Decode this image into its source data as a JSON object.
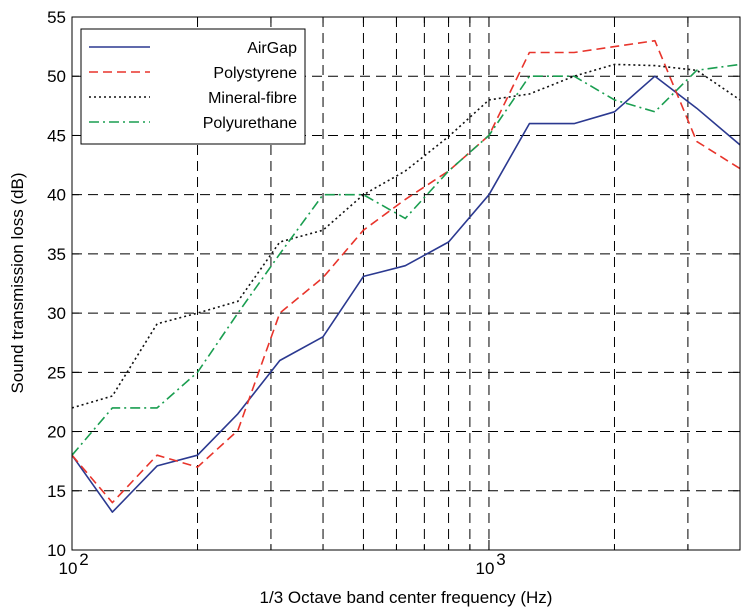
{
  "chart_data": {
    "type": "line",
    "title": "",
    "xlabel": "1/3 Octave band center frequency (Hz)",
    "ylabel": "Sound transmission loss (dB)",
    "xscale": "log",
    "xlim": [
      100,
      4000
    ],
    "ylim": [
      10,
      55
    ],
    "yticks": [
      10,
      15,
      20,
      25,
      30,
      35,
      40,
      45,
      50,
      55
    ],
    "xticks_major": [
      {
        "value": 100,
        "base": "10",
        "exp": "2"
      },
      {
        "value": 1000,
        "base": "10",
        "exp": "3"
      }
    ],
    "grid": true,
    "grid_style": "dashed",
    "legend_position": "top-left",
    "x": [
      100,
      125,
      160,
      200,
      250,
      315,
      400,
      500,
      630,
      800,
      1000,
      1250,
      1600,
      2000,
      2500,
      3150,
      4000
    ],
    "series": [
      {
        "name": "AirGap",
        "color": "#2b3990",
        "dash": "solid",
        "values": [
          18,
          13.2,
          17.1,
          18,
          21.5,
          26,
          28,
          33.1,
          34,
          36,
          40,
          46,
          46,
          47,
          50,
          47.3,
          44.2
        ]
      },
      {
        "name": "Polystyrene",
        "color": "#e8342b",
        "dash": "dashed",
        "values": [
          18,
          14,
          18,
          17,
          20.1,
          30,
          33,
          37,
          39.6,
          42,
          45,
          52,
          52,
          52.5,
          53,
          44.5,
          42.2
        ]
      },
      {
        "name": "Mineral-fibre",
        "color": "#111111",
        "dash": "dotted",
        "values": [
          22,
          23,
          29.1,
          30,
          31,
          36,
          37,
          40,
          42,
          44.9,
          48,
          48.5,
          50,
          51,
          50.9,
          50.5,
          48
        ]
      },
      {
        "name": "Polyurethane",
        "color": "#1a9e50",
        "dash": "dashdot",
        "values": [
          18,
          22,
          22,
          25,
          30,
          35,
          40,
          40,
          38,
          42,
          45,
          50,
          50,
          48,
          47,
          50.5,
          51
        ]
      }
    ]
  }
}
